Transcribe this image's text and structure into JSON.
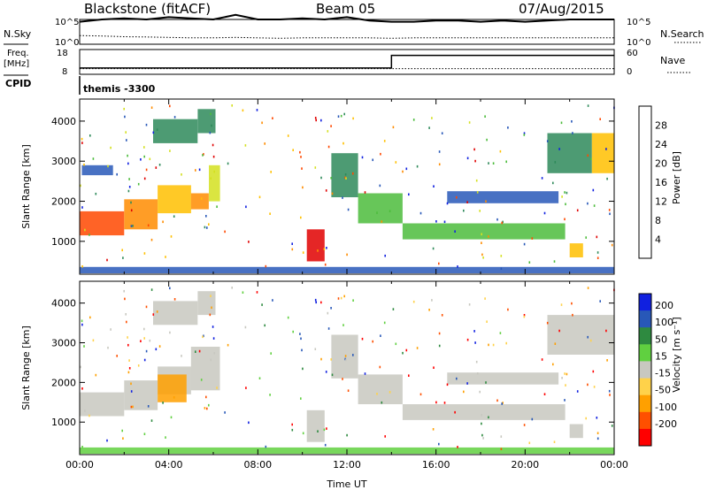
{
  "header": {
    "radar": "Blackstone (fitACF)",
    "beam": "Beam 05",
    "date": "07/Aug/2015"
  },
  "left_labels": {
    "nsky": "N.Sky",
    "freq": "Freq.",
    "freq_unit": "[MHz]",
    "cpid": "CPID"
  },
  "right_labels": {
    "nsearch": "N.Search",
    "nave": "Nave"
  },
  "cpid_value": "themis -3300",
  "colors": {
    "scale": [
      "#0000ff",
      "#2a50c8",
      "#2e7d5a",
      "#50c850",
      "#c8e632",
      "#ffd700",
      "#ffa000",
      "#ff5000",
      "#ff0000"
    ],
    "ground": "#c8c8c0",
    "power_bins": [
      "#1020e0",
      "#2858b8",
      "#2e8a5a",
      "#4cbc3c",
      "#d4e020",
      "#ffc000",
      "#ff8c00",
      "#ff4800",
      "#e00000"
    ],
    "velocity_bins": [
      "#ff0000",
      "#ff5000",
      "#ffa000",
      "#ffd24a",
      "#c8c8c0",
      "#60d040",
      "#2e8a40",
      "#2858b8",
      "#1020e0"
    ]
  },
  "chart_data": [
    {
      "type": "line",
      "title": "",
      "series": [
        {
          "name": "N.Sky",
          "values": [
            0.9,
            1.0,
            1.05,
            1.0,
            1.1,
            1.05,
            1.0,
            1.2,
            1.0,
            1.0,
            1.05,
            1.0,
            1.1,
            0.95,
            0.9,
            0.9,
            0.95,
            0.95,
            0.9,
            0.95,
            0.9,
            0.95,
            1.0,
            1.0,
            1.0
          ]
        },
        {
          "name": "N.Search",
          "values": [
            0.3,
            0.28,
            0.25,
            0.24,
            0.22,
            0.2,
            0.2,
            0.22,
            0.2,
            0.18,
            0.2,
            0.2,
            0.2,
            0.2,
            0.18,
            0.2,
            0.2,
            0.2,
            0.2,
            0.2,
            0.2,
            0.2,
            0.2,
            0.2,
            0.2
          ]
        }
      ],
      "x": [
        0,
        1,
        2,
        3,
        4,
        5,
        6,
        7,
        8,
        9,
        10,
        11,
        12,
        13,
        14,
        15,
        16,
        17,
        18,
        19,
        20,
        21,
        22,
        23,
        24
      ],
      "right_ticks": [
        "10^5",
        "10^0"
      ],
      "left_ticks": [
        "10^5",
        "10^0"
      ]
    },
    {
      "type": "line",
      "series": [
        {
          "name": "Freq.",
          "values": [
            10.3,
            10.3,
            10.3,
            10.3,
            10.3,
            10.3,
            10.3,
            10.3,
            10.3,
            10.3,
            10.3,
            10.3,
            10.3,
            10.3,
            16.8,
            16.8,
            16.8,
            16.8,
            16.8,
            16.8,
            16.8,
            16.8,
            16.8,
            16.8,
            16.8
          ]
        },
        {
          "name": "Nave",
          "values": [
            12,
            12,
            12,
            12,
            12,
            12,
            12,
            12,
            12,
            12,
            12,
            12,
            12,
            12,
            12,
            12,
            12,
            12,
            12,
            12,
            12,
            12,
            12,
            12,
            12
          ]
        }
      ],
      "x": [
        0,
        1,
        2,
        3,
        4,
        5,
        6,
        7,
        8,
        9,
        10,
        11,
        12,
        13,
        14,
        15,
        16,
        17,
        18,
        19,
        20,
        21,
        22,
        23,
        24
      ],
      "left_ticks": [
        "18",
        "8"
      ],
      "right_ticks": [
        "60",
        "0"
      ]
    },
    {
      "type": "heatmap",
      "variable": "power",
      "ylabel": "Slant Range [km]",
      "yticks": [
        1000,
        2000,
        3000,
        4000
      ],
      "ylim": [
        180,
        4550
      ],
      "xlim": [
        0,
        24
      ],
      "colorbar_label": "Power [dB]",
      "colorbar_ticks": [
        "4",
        "8",
        "12",
        "16",
        "20",
        "24",
        "28"
      ],
      "bands": [
        {
          "t0": 0.0,
          "t1": 2.0,
          "r0": 1150,
          "r1": 1750,
          "bin": 7
        },
        {
          "t0": 2.0,
          "t1": 3.5,
          "r0": 1300,
          "r1": 2050,
          "bin": 6
        },
        {
          "t0": 3.5,
          "t1": 5.0,
          "r0": 1700,
          "r1": 2400,
          "bin": 5
        },
        {
          "t0": 5.0,
          "t1": 5.8,
          "r0": 1800,
          "r1": 2200,
          "bin": 6
        },
        {
          "t0": 5.8,
          "t1": 6.3,
          "r0": 2000,
          "r1": 2900,
          "bin": 4
        },
        {
          "t0": 3.3,
          "t1": 5.3,
          "r0": 3450,
          "r1": 4050,
          "bin": 2
        },
        {
          "t0": 5.3,
          "t1": 6.1,
          "r0": 3700,
          "r1": 4300,
          "bin": 2
        },
        {
          "t0": 0.1,
          "t1": 1.5,
          "r0": 2650,
          "r1": 2900,
          "bin": 1
        },
        {
          "t0": 10.2,
          "t1": 11.0,
          "r0": 500,
          "r1": 1300,
          "bin": 8
        },
        {
          "t0": 11.3,
          "t1": 12.5,
          "r0": 2100,
          "r1": 3200,
          "bin": 2
        },
        {
          "t0": 12.5,
          "t1": 14.5,
          "r0": 1450,
          "r1": 2200,
          "bin": 3
        },
        {
          "t0": 14.5,
          "t1": 21.8,
          "r0": 1050,
          "r1": 1450,
          "bin": 3
        },
        {
          "t0": 16.5,
          "t1": 21.5,
          "r0": 1950,
          "r1": 2250,
          "bin": 1
        },
        {
          "t0": 21.0,
          "t1": 23.0,
          "r0": 2700,
          "r1": 3700,
          "bin": 2
        },
        {
          "t0": 23.0,
          "t1": 24.0,
          "r0": 2700,
          "r1": 3700,
          "bin": 5
        },
        {
          "t0": 22.0,
          "t1": 22.6,
          "r0": 600,
          "r1": 950,
          "bin": 5
        },
        {
          "t0": 0.0,
          "t1": 24.0,
          "r0": 200,
          "r1": 360,
          "bin": 1
        }
      ]
    },
    {
      "type": "heatmap",
      "variable": "velocity",
      "ylabel": "Slant Range [km]",
      "xlabel": "Time UT",
      "xticks": [
        "00:00",
        "04:00",
        "08:00",
        "12:00",
        "16:00",
        "20:00",
        "00:00"
      ],
      "yticks": [
        1000,
        2000,
        3000,
        4000
      ],
      "ylim": [
        180,
        4550
      ],
      "xlim": [
        0,
        24
      ],
      "colorbar_label": "Velocity [m s⁻¹]",
      "colorbar_ticks": [
        "200",
        "100",
        "50",
        "15",
        "-15",
        "-50",
        "-100",
        "-200"
      ],
      "bands": [
        {
          "t0": 0.0,
          "t1": 2.0,
          "r0": 1150,
          "r1": 1750,
          "bin": 4
        },
        {
          "t0": 2.0,
          "t1": 3.5,
          "r0": 1300,
          "r1": 2050,
          "bin": 4
        },
        {
          "t0": 3.5,
          "t1": 5.0,
          "r0": 1700,
          "r1": 2400,
          "bin": 4
        },
        {
          "t0": 5.0,
          "t1": 6.3,
          "r0": 1800,
          "r1": 2900,
          "bin": 4
        },
        {
          "t0": 3.3,
          "t1": 5.3,
          "r0": 3450,
          "r1": 4050,
          "bin": 4
        },
        {
          "t0": 5.3,
          "t1": 6.1,
          "r0": 3700,
          "r1": 4300,
          "bin": 4
        },
        {
          "t0": 10.2,
          "t1": 11.0,
          "r0": 500,
          "r1": 1300,
          "bin": 4
        },
        {
          "t0": 11.3,
          "t1": 12.5,
          "r0": 2100,
          "r1": 3200,
          "bin": 4
        },
        {
          "t0": 12.5,
          "t1": 14.5,
          "r0": 1450,
          "r1": 2200,
          "bin": 4
        },
        {
          "t0": 14.5,
          "t1": 21.8,
          "r0": 1050,
          "r1": 1450,
          "bin": 4
        },
        {
          "t0": 16.5,
          "t1": 21.5,
          "r0": 1950,
          "r1": 2250,
          "bin": 4
        },
        {
          "t0": 21.0,
          "t1": 24.0,
          "r0": 2700,
          "r1": 3700,
          "bin": 4
        },
        {
          "t0": 22.0,
          "t1": 22.6,
          "r0": 600,
          "r1": 950,
          "bin": 4
        },
        {
          "t0": 3.5,
          "t1": 4.8,
          "r0": 1500,
          "r1": 2200,
          "bin": 2
        },
        {
          "t0": 0.0,
          "t1": 24.0,
          "r0": 200,
          "r1": 360,
          "bin": 5
        }
      ]
    }
  ]
}
